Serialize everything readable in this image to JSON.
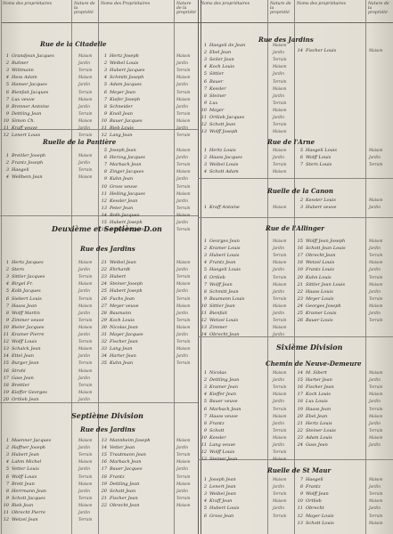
{
  "headers": [
    "Noms des propriétaires",
    "Nature de la propriété",
    "Noms des Propriétaires",
    "Nature de la propriété",
    "Noms des propriétaires",
    "Nature de la propriété",
    "Noms des propriétaires",
    "Nature de la propriété"
  ],
  "titles": {
    "citadelle": "Rue de la Citadelle",
    "jardins_1": "Rue des Jardins",
    "pantiere": "Ruelle de la Pantière",
    "arne": "Rue de l'Arne",
    "canon": "Ruelle de la Canon",
    "deuxieme": "Deuxième et Septième D.on",
    "jardins_2": "Rue des Jardins",
    "allinger": "Rue de l'Allinger",
    "septieme": "Septième Division",
    "sixieme": "Sixième Division",
    "neuve": "Chemin de Neuve-Demeure",
    "jardins_3": "Rue des Jardins",
    "stmaur": "Ruelle de St Maur"
  },
  "col1": {
    "citadelle": [
      "Grandjean Jacques",
      "Ruhner",
      "Wittmann",
      "Hess Adam",
      "Hanser Jacques",
      "Bienfait Jacques",
      "Lux veuve",
      "Brenner Antoine",
      "Dettling Jean",
      "Simon Ch.",
      "Kraff veuve",
      "Lenert Louis"
    ],
    "pantiere": [
      "Breitler Joseph",
      "Frantz Joseph",
      "Haegeli",
      "Wellbein Jean"
    ],
    "jardins": [
      "Hertz Jacques",
      "Stern",
      "Sittler Jacques",
      "Birgel Fr.",
      "Kolb Jacques",
      "Siebert Louis",
      "Haass Jean",
      "Wolff Martin",
      "Zimmer veuve",
      "Bieler Jacques",
      "Kramer Pierre",
      "Wolff Louis",
      "Schalck Jean",
      "Ettel Jean",
      "Burger Jean",
      "Strohl",
      "Gass Jean",
      "Brettler",
      "Kieffer Georges",
      "Ortlieb Jean"
    ],
    "septieme": [
      "Maenner Jacques",
      "Haffner Joseph",
      "Hubert Jean",
      "Lahm Michel",
      "Vetter Louis",
      "Wolff Louis",
      "Brett Jean",
      "Herrmann Jean",
      "Schott Jacques",
      "Rieb Jean",
      "Obrecht Pierre",
      "Wetzel Jean"
    ]
  },
  "col2": {
    "citadelle": [
      "Hertz Joseph",
      "Weibel Louis",
      "Hubert Jacques",
      "Schmitt Joseph",
      "Adam Jacques",
      "Meyer Jean",
      "Kiefer Joseph",
      "Schneider",
      "Knoll Jean",
      "Bauer Jacques",
      "Rieb Louis",
      "Lang Jean"
    ],
    "pantiere": [
      "Joseph Jean",
      "Herzog Jacques",
      "Marbach Jean",
      "Zinger Jacques",
      "Kuhn Jean",
      "Gross veuve",
      "Heiling Jacques",
      "Kessler Jean",
      "Peter Jean",
      "Roth Jacques",
      "Hubert Joseph",
      "Schneider Jean"
    ],
    "jardins": [
      "Weibel Jean",
      "Ehrhardt",
      "Hubert",
      "Steiner Joseph",
      "Hubert Joseph",
      "Fuchs Jean",
      "Meyer veuve",
      "Baumann",
      "Koch Louis",
      "Nicolas Jean",
      "Mayer Jacques",
      "Fischer Jean",
      "Lang Jean",
      "Harter Jean",
      "Kuhn Jean"
    ],
    "septieme": [
      "Mannheim Joseph",
      "Vetter Jean",
      "Trautmann Jean",
      "Marbach Jean",
      "Bauer Jacques",
      "Frantz",
      "Dettling Jean",
      "Schott Jean",
      "Fischer Jean",
      "Obrecht Jean"
    ]
  },
  "col3": {
    "jardins": [
      "Haegeli de Jean",
      "Ebel Jean",
      "Seiler Jean",
      "Koch Louis",
      "Sittler",
      "Bauer",
      "Kessler",
      "Steiner",
      "Lux",
      "Mayer",
      "Ortlieb Jacques",
      "Schott Jean",
      "Wolff Joseph"
    ],
    "arne": [
      "Hertz Louis",
      "Haass Jacques",
      "Weibel Louis",
      "Schott Adam"
    ],
    "canon": [
      "Kraff Antoine"
    ],
    "allinger": [
      "Georges Jean",
      "Kramer Louis",
      "Hubert Louis",
      "Frantz Jean",
      "Haegeli Louis",
      "Ortlieb",
      "Wolff Jean",
      "Schmitt Jean",
      "Baumann Louis",
      "Sittler Jean",
      "Bienfait",
      "Wetzel Louis",
      "Zimmer",
      "Obrecht Jean"
    ],
    "neuve": [
      "Nicolas",
      "Dettling Jean",
      "Kramer Jean",
      "Kieffer Jean",
      "Bauer veuve",
      "Marbach Jean",
      "Haass veuve",
      "Frantz",
      "Schott",
      "Kessler",
      "Lang veuve",
      "Wolff Louis",
      "Steiner Jean"
    ],
    "stmaur": [
      "Joseph Jean",
      "Lenert Jean",
      "Weibel Jean",
      "Kraff Jean",
      "Hubert Louis",
      "Gross Jean"
    ]
  },
  "col4": {
    "jardins": [
      "Fischer Louis"
    ],
    "arne": [
      "Haegeli Louis",
      "Wolff Louis",
      "Stern Louis"
    ],
    "canon": [
      "Kessler Louis",
      "Hubert veuve"
    ],
    "allinger": [
      "Wolff Jean Joseph",
      "Schott Jean Louis",
      "Obrecht Jean",
      "Wetzel Louis",
      "Frantz Louis",
      "Kuhn Louis",
      "Sittler Jean Louis",
      "Haass Louis",
      "Meyer Louis",
      "Georges Joseph",
      "Kramer Louis",
      "Bauer Louis"
    ],
    "neuve": [
      "M. Sibert",
      "Harter Jean",
      "Fischer Jean",
      "Koch Louis",
      "Lux Louis",
      "Haass Jean",
      "Ebel Jean",
      "Hertz Louis",
      "Steiner Louis",
      "Adam Louis",
      "Gass Jean"
    ],
    "stmaur": [
      "Haegeli",
      "Frantz",
      "Wolff Jean",
      "Ortlieb",
      "Obrecht",
      "Mayer Louis",
      "Schott Louis"
    ]
  },
  "qual": [
    "Maison",
    "Jardin",
    "Terrain"
  ]
}
